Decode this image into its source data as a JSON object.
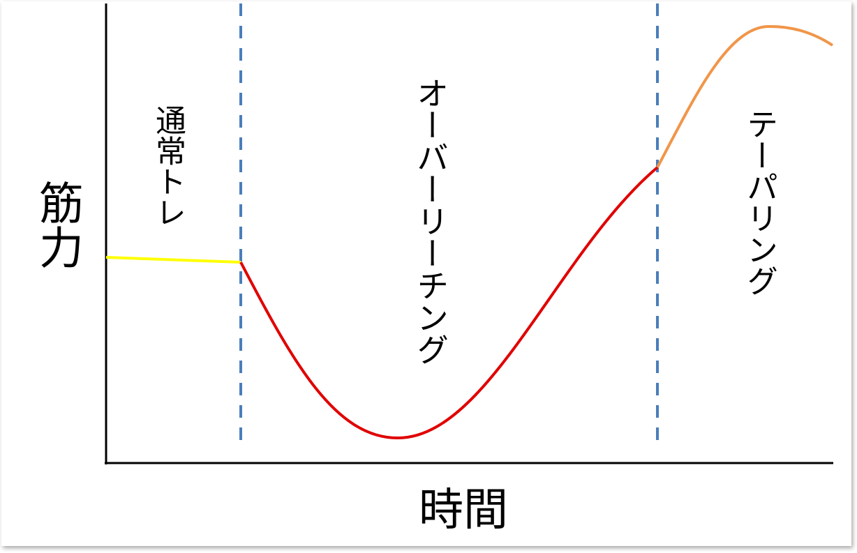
{
  "axes": {
    "y_label": "筋力",
    "x_label": "時間"
  },
  "phases": [
    {
      "label": "通常トレ"
    },
    {
      "label": "オーバーリーチング"
    },
    {
      "label": "テーパリング"
    }
  ]
}
